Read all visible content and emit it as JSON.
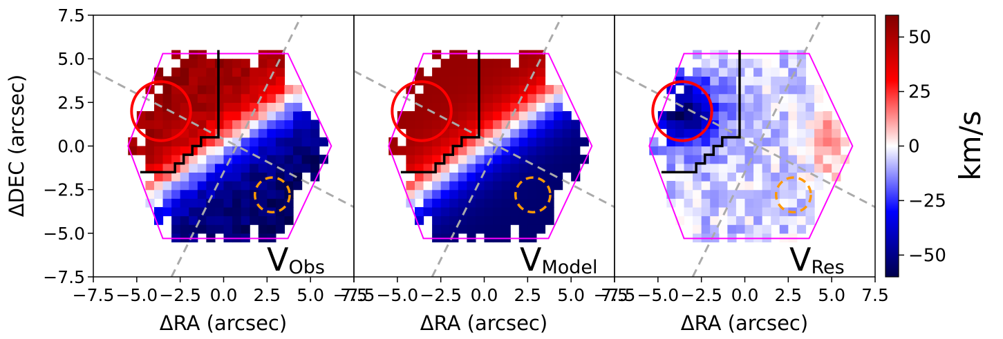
{
  "chart_data": [
    {
      "type": "heatmap",
      "panel_label": "V",
      "panel_subscript": "Obs",
      "xlabel": "ΔRA (arcsec)",
      "ylabel": "ΔDEC (arcsec)",
      "xlim": [
        -7.5,
        7.5
      ],
      "ylim": [
        -7.5,
        7.5
      ],
      "xticks": [
        "−7.5",
        "−5.0",
        "−2.5",
        "0.0",
        "2.5",
        "5.0",
        "7.5"
      ],
      "yticks": [
        "7.5",
        "5.0",
        "2.5",
        "0.0",
        "−2.5",
        "−5.0",
        "−7.5"
      ],
      "field": {
        "kind": "rotating_disk",
        "pa_deg": 125,
        "vmax": 55,
        "scale": 1.6,
        "noise": 6
      },
      "overlays": {
        "hexagon_vertices": [
          [
            -5.5,
            0
          ],
          [
            -3.5,
            5.3
          ],
          [
            3.7,
            5.3
          ],
          [
            6.2,
            0
          ],
          [
            3.7,
            -5.3
          ],
          [
            -3.5,
            -5.3
          ]
        ],
        "red_circle": {
          "center": [
            -3.6,
            2.0
          ],
          "radius": 1.7
        },
        "orange_dashed_circle": {
          "center": [
            2.8,
            -2.8
          ],
          "radius": 1.0
        },
        "dashed_line_1": [
          [
            -7.5,
            4.3
          ],
          [
            7.5,
            -3.5
          ]
        ],
        "dashed_line_2": [
          [
            -3.0,
            -7.5
          ],
          [
            4.5,
            7.5
          ]
        ],
        "black_boundary": [
          [
            -4.8,
            -1.5
          ],
          [
            -2.8,
            -1.5
          ],
          [
            -2.8,
            -1.0
          ],
          [
            -2.3,
            -1.0
          ],
          [
            -2.3,
            -0.5
          ],
          [
            -1.8,
            -0.5
          ],
          [
            -1.8,
            0
          ],
          [
            -1.3,
            0
          ],
          [
            -1.3,
            0.5
          ],
          [
            -0.3,
            0.5
          ],
          [
            -0.3,
            5.5
          ]
        ]
      }
    },
    {
      "type": "heatmap",
      "panel_label": "V",
      "panel_subscript": "Model",
      "xlabel": "ΔRA (arcsec)",
      "ylabel": "",
      "xlim": [
        -7.5,
        7.5
      ],
      "ylim": [
        -7.5,
        7.5
      ],
      "xticks": [
        "−7.5",
        "−5.0",
        "−2.5",
        "0.0",
        "2.5",
        "5.0",
        "7.5"
      ],
      "yticks": [],
      "field": {
        "kind": "rotating_disk",
        "pa_deg": 125,
        "vmax": 55,
        "scale": 1.6,
        "noise": 0
      }
    },
    {
      "type": "heatmap",
      "panel_label": "V",
      "panel_subscript": "Res",
      "xlabel": "ΔRA (arcsec)",
      "ylabel": "",
      "xlim": [
        -7.5,
        7.5
      ],
      "ylim": [
        -7.5,
        7.5
      ],
      "xticks": [
        "−7.5",
        "−5.0",
        "−2.5",
        "0.0",
        "2.5",
        "5.0",
        "7.5"
      ],
      "yticks": [],
      "field": {
        "kind": "residual",
        "blob_center": [
          -3.6,
          2.0
        ],
        "blob_value": -48,
        "blob_sigma": 1.4,
        "east_value": 18,
        "noise": 8
      }
    }
  ],
  "colorbar": {
    "label": "km/s",
    "min": -60,
    "max": 60,
    "ticks": [
      {
        "value": 50,
        "label": "50"
      },
      {
        "value": 25,
        "label": "25"
      },
      {
        "value": 0,
        "label": "0"
      },
      {
        "value": -25,
        "label": "−25"
      },
      {
        "value": -50,
        "label": "−50"
      }
    ],
    "colormap": "seismic"
  },
  "colors": {
    "hexagon": "#ff00ff",
    "red_circle": "#ff0000",
    "orange_circle": "#ff9900",
    "dashed_line": "#aaaaaa",
    "boundary": "#000000"
  }
}
